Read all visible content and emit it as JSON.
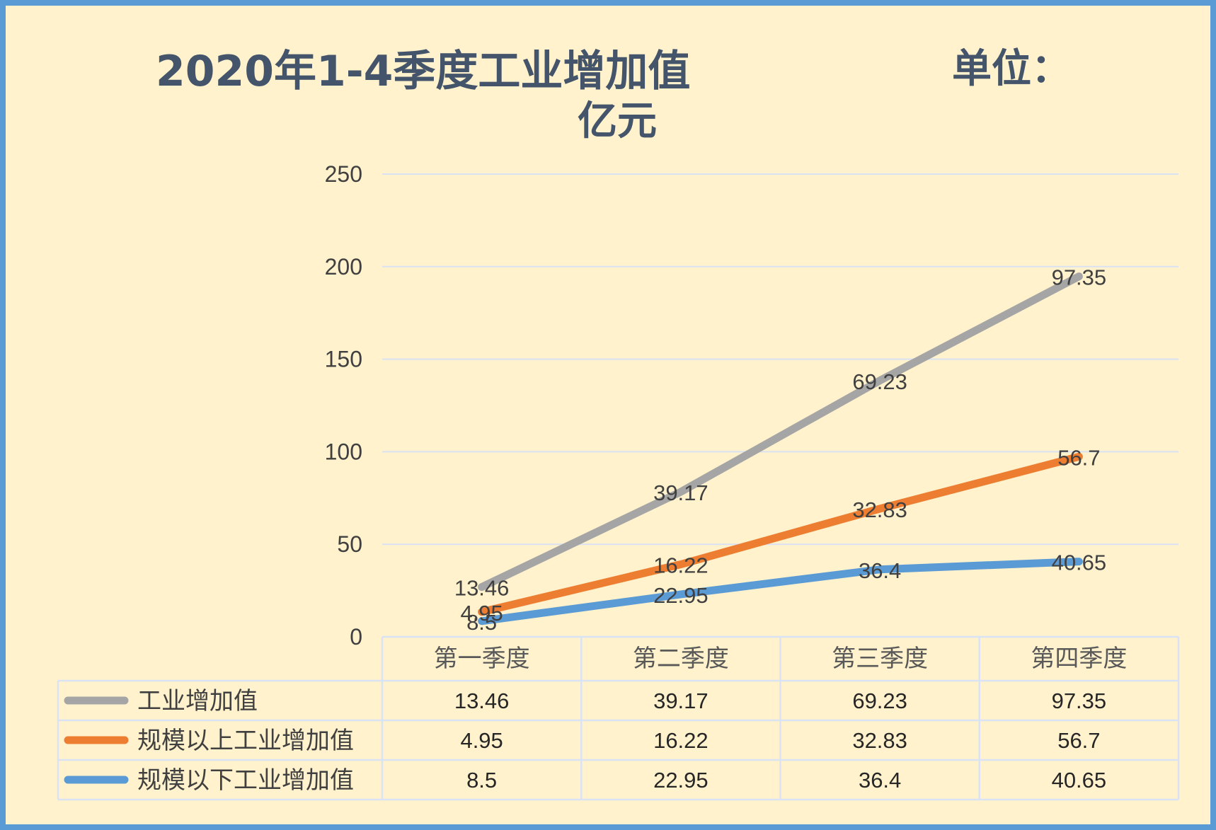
{
  "title": {
    "main": "2020年1-4季度工业增加值",
    "unit_label": "单位：",
    "unit_value": "亿元"
  },
  "chart_data": {
    "type": "line",
    "stacked": true,
    "categories": [
      "第一季度",
      "第二季度",
      "第三季度",
      "第四季度"
    ],
    "series": [
      {
        "name": "工业增加值",
        "values": [
          13.46,
          39.17,
          69.23,
          97.35
        ],
        "color": "#a5a5a5",
        "labels": [
          "13.46",
          "39.17",
          "69.23",
          "97.35"
        ]
      },
      {
        "name": "规模以上工业增加值",
        "values": [
          4.95,
          16.22,
          32.83,
          56.7
        ],
        "color": "#ed7d31",
        "labels": [
          "4.95",
          "16.22",
          "32.83",
          "56.7"
        ]
      },
      {
        "name": "规模以下工业增加值",
        "values": [
          8.5,
          22.95,
          36.4,
          40.65
        ],
        "color": "#5b9bd5",
        "labels": [
          "8.5",
          "22.95",
          "36.4",
          "40.65"
        ]
      }
    ],
    "ylim": [
      0,
      250
    ],
    "yticks": [
      "0",
      "50",
      "100",
      "150",
      "200",
      "250"
    ],
    "grid": true,
    "data_table": true
  }
}
